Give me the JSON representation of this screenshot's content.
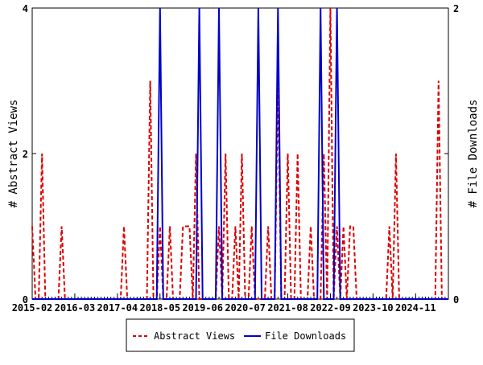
{
  "chart_data": {
    "type": "line",
    "x_range": [
      "2015-02",
      "2025-09"
    ],
    "x_tick_labels": [
      "2015-02",
      "2016-03",
      "2017-04",
      "2018-05",
      "2019-06",
      "2020-07",
      "2021-08",
      "2022-09",
      "2023-10",
      "2024-11"
    ],
    "y_left": {
      "label": "# Abstract Views",
      "ylim": [
        0,
        4
      ],
      "ticks": [
        "0",
        "2",
        "4"
      ]
    },
    "y_right": {
      "label": "# File Downloads",
      "ylim": [
        0,
        2
      ],
      "ticks": [
        "0",
        "1",
        "2"
      ]
    },
    "grid": false,
    "legend_placement": "bottom",
    "series": [
      {
        "name": "Abstract Views",
        "axis": "left",
        "color": "#dd0000",
        "style": "dashed",
        "nonzero": {
          "2015-02": 1,
          "2015-05": 2,
          "2015-11": 1,
          "2017-06": 1,
          "2018-02": 3,
          "2018-05": 1,
          "2018-08": 1,
          "2018-12": 1,
          "2019-01": 1,
          "2019-02": 1,
          "2019-04": 2,
          "2019-11": 1,
          "2020-01": 2,
          "2020-04": 1,
          "2020-06": 2,
          "2020-09": 1,
          "2021-02": 1,
          "2021-05": 3,
          "2021-08": 2,
          "2021-11": 2,
          "2022-03": 1,
          "2022-07": 2,
          "2022-09": 4,
          "2022-11": 1,
          "2023-01": 1,
          "2023-03": 1,
          "2023-04": 1,
          "2024-03": 1,
          "2024-05": 2,
          "2025-06": 3
        }
      },
      {
        "name": "File Downloads",
        "axis": "right",
        "color": "#0000cc",
        "style": "solid",
        "nonzero": {
          "2018-05": 2,
          "2019-05": 2,
          "2019-11": 2,
          "2020-11": 2,
          "2021-05": 2,
          "2022-06": 2,
          "2022-11": 2
        }
      }
    ]
  }
}
